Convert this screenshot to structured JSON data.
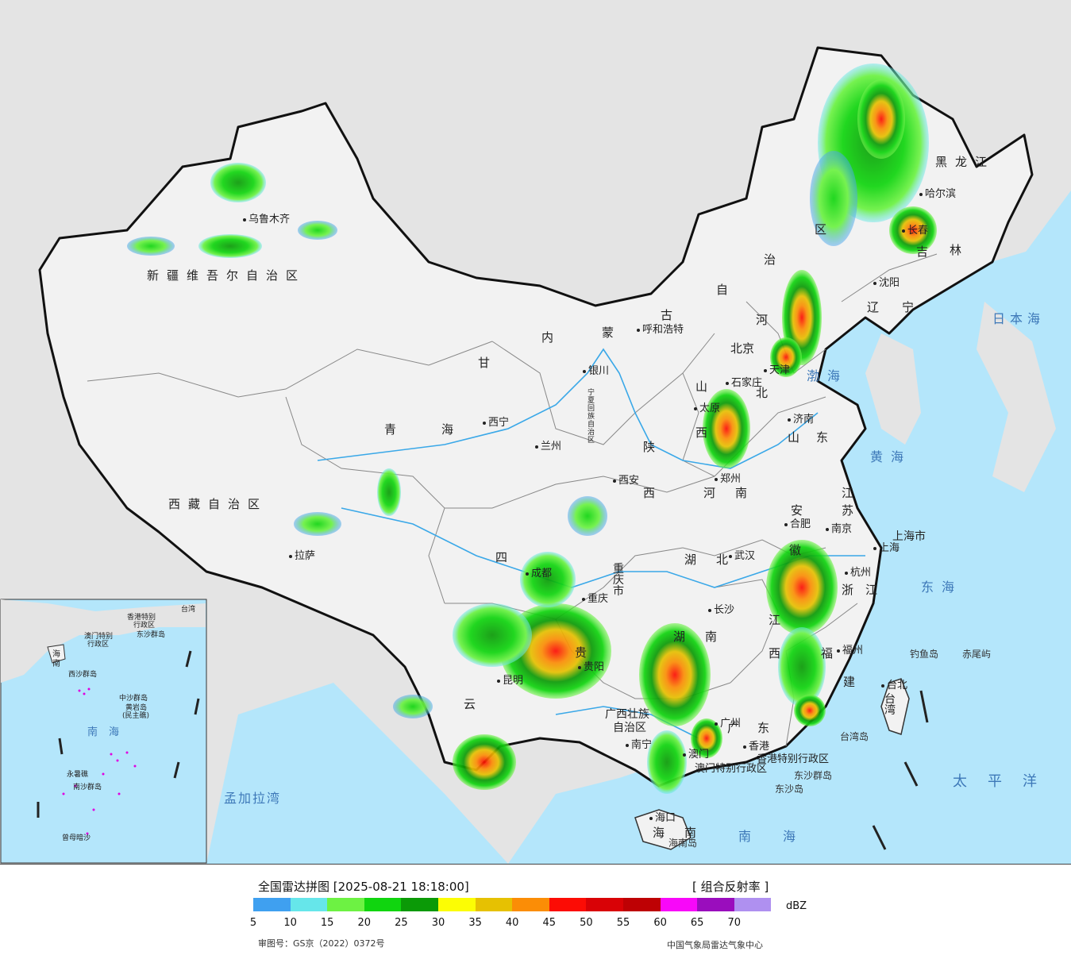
{
  "legend": {
    "title": "全国雷达拼图 [2025-08-21 18:18:00]",
    "product": "[ 组合反射率 ]",
    "unit": "dBZ",
    "scale": [
      {
        "value": "5",
        "color": "#3fa0f0"
      },
      {
        "value": "10",
        "color": "#66e6ea"
      },
      {
        "value": "15",
        "color": "#6df243"
      },
      {
        "value": "20",
        "color": "#10d50f"
      },
      {
        "value": "25",
        "color": "#0b9a07"
      },
      {
        "value": "30",
        "color": "#fcfd04"
      },
      {
        "value": "35",
        "color": "#e6c102"
      },
      {
        "value": "40",
        "color": "#fb8d06"
      },
      {
        "value": "45",
        "color": "#fc0c05"
      },
      {
        "value": "50",
        "color": "#d90206"
      },
      {
        "value": "55",
        "color": "#be0104"
      },
      {
        "value": "60",
        "color": "#f808f9"
      },
      {
        "value": "65",
        "color": "#9a0dbd"
      },
      {
        "value": "70",
        "color": "#af90f0"
      }
    ],
    "approval": "审图号：GS京（2022）0372号",
    "agency": "中国气象局雷达气象中心"
  },
  "map": {
    "colors": {
      "land": "#f2f2f2",
      "neighbor": "#e4e4e4",
      "sea": "#b4e6fb",
      "border": "#111111",
      "river": "#3aa8e8"
    },
    "provinces": {
      "xinjiang": "新疆维吾尔自治区",
      "xizang": "西藏自治区",
      "qinghai_1": "青",
      "qinghai_2": "海",
      "gansu": "甘",
      "sichuan": "四",
      "yunnan": "云",
      "guizhou": "贵",
      "guangxi": "广西壮族",
      "guangxi_2": "自治区",
      "hunan_1": "湖",
      "hunan_2": "南",
      "hubei": "湖",
      "hubei_2": "北",
      "henan": "河",
      "henan_2": "南",
      "shandong": "山",
      "shandong_2": "东",
      "shanxi_1": "山",
      "shanxi_2": "西",
      "shaanxi": "陕",
      "shaanxi_2": "西",
      "hebei": "河",
      "hebei_2": "北",
      "neimenggu_1": "内",
      "neimenggu_2": "蒙",
      "neimenggu_3": "古",
      "neimenggu_4": "自",
      "neimenggu_5": "治",
      "neimenggu_6": "区",
      "heilongjiang": "黑龙江",
      "jilin": "吉",
      "jilin_2": "林",
      "liaoning": "辽",
      "liaoning_2": "宁",
      "jiangsu": "江",
      "jiangsu_2": "苏",
      "anhui": "安",
      "anhui_2": "徽",
      "zhejiang": "浙",
      "zhejiang_2": "江",
      "jiangxi_1": "江",
      "jiangxi_2": "西",
      "fujian": "福",
      "fujian_2": "建",
      "guangdong": "广",
      "guangdong_2": "东",
      "hainan": "海",
      "hainan_2": "南",
      "taiwan": "台湾",
      "chongqing": "重庆市",
      "shanghai": "上海市",
      "ningxia": "宁夏回族自治区",
      "hongkong": "香港特别行政区",
      "macao": "澳门特别行政区"
    },
    "cities": {
      "urumqi": "乌鲁木齐",
      "lhasa": "拉萨",
      "xining": "西宁",
      "lanzhou": "兰州",
      "yinchuan": "银川",
      "xian": "西安",
      "chengdu": "成都",
      "chongqing": "重庆",
      "guiyang": "贵阳",
      "kunming": "昆明",
      "nanning": "南宁",
      "changsha": "长沙",
      "wuhan": "武汉",
      "zhengzhou": "郑州",
      "taiyuan": "太原",
      "shijiazhuang": "石家庄",
      "beijing": "北京",
      "tianjin": "天津",
      "jinan": "济南",
      "hohhot": "呼和浩特",
      "shenyang": "沈阳",
      "changchun": "长春",
      "harbin": "哈尔滨",
      "hefei": "合肥",
      "nanjing": "南京",
      "shanghai": "上海",
      "hangzhou": "杭州",
      "fuzhou": "福州",
      "taipei": "台北",
      "guangzhou": "广州",
      "haikou": "海口",
      "hongkong": "香港",
      "macao": "澳门"
    },
    "seas": {
      "bohai": "渤海",
      "huanghai": "黄海",
      "donghai": "东海",
      "nanhai": "南海",
      "riben": "日本海",
      "taipingyang": "太平洋",
      "mengjiala": "孟加拉湾"
    },
    "islands": {
      "diaoyu": "钓鱼岛",
      "chiwei": "赤尾屿",
      "dongsha_qd": "东沙群岛",
      "dongsha": "东沙岛",
      "hainan_island": "海南岛",
      "taiwan_island": "台湾岛"
    },
    "inset": {
      "taiwan": "台湾",
      "nanhai": "南海",
      "hongkong": "香港特别",
      "hongkong_2": "行政区",
      "macao": "澳门特别",
      "macao_2": "行政区",
      "dongsha": "东沙群岛",
      "xisha": "西沙群岛",
      "zhongsha": "中沙群岛",
      "huangyan": "黄岩岛",
      "huangyan_2": "(民主礁)",
      "nansha": "南沙群岛",
      "yongshu": "永暑礁",
      "zengmu": "曾母暗沙",
      "hai": "海",
      "nan": "南"
    }
  }
}
